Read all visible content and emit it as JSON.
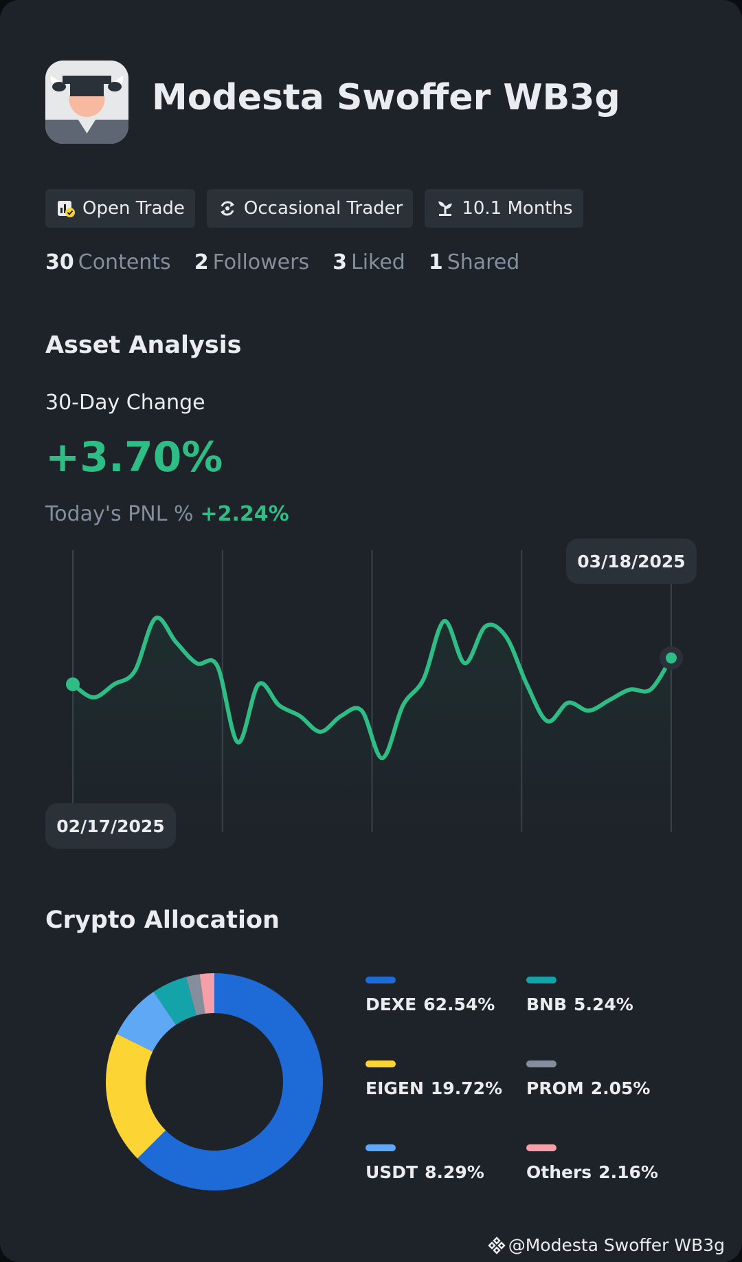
{
  "profile": {
    "name": "Modesta Swoffer WB3g",
    "tags": [
      {
        "label": "Open Trade",
        "icon": "open-trade-icon"
      },
      {
        "label": "Occasional Trader",
        "icon": "trader-cycle-icon"
      },
      {
        "label": "10.1 Months",
        "icon": "sprout-icon"
      }
    ],
    "stats": [
      {
        "value": "30",
        "label": "Contents"
      },
      {
        "value": "2",
        "label": "Followers"
      },
      {
        "value": "3",
        "label": "Liked"
      },
      {
        "value": "1",
        "label": "Shared"
      }
    ]
  },
  "asset_analysis": {
    "title": "Asset Analysis",
    "change_label": "30-Day Change",
    "change_value": "+3.70%",
    "pnl_label": "Today's PNL %",
    "pnl_value": "+2.24%",
    "start_date": "02/17/2025",
    "end_date": "03/18/2025"
  },
  "allocation": {
    "title": "Crypto Allocation",
    "items": [
      {
        "name": "DEXE",
        "percent": "62.54%",
        "color": "#1e6ad6"
      },
      {
        "name": "BNB",
        "percent": "5.24%",
        "color": "#14a3a8"
      },
      {
        "name": "EIGEN",
        "percent": "19.72%",
        "color": "#fcd535"
      },
      {
        "name": "PROM",
        "percent": "2.05%",
        "color": "#848e9c"
      },
      {
        "name": "USDT",
        "percent": "8.29%",
        "color": "#5ea8f5"
      },
      {
        "name": "Others",
        "percent": "2.16%",
        "color": "#f5a0a8"
      }
    ]
  },
  "watermark": "@Modesta Swoffer WB3g",
  "colors": {
    "positive": "#2ebd85",
    "background": "#1e2329",
    "muted": "#848e9c"
  },
  "chart_data": [
    {
      "type": "line",
      "x": [
        "02/17/2025",
        "02/18/2025",
        "02/19/2025",
        "02/20/2025",
        "02/21/2025",
        "02/22/2025",
        "02/23/2025",
        "02/24/2025",
        "02/25/2025",
        "02/26/2025",
        "02/27/2025",
        "02/28/2025",
        "03/01/2025",
        "03/02/2025",
        "03/03/2025",
        "03/04/2025",
        "03/05/2025",
        "03/06/2025",
        "03/07/2025",
        "03/08/2025",
        "03/09/2025",
        "03/10/2025",
        "03/11/2025",
        "03/12/2025",
        "03/13/2025",
        "03/14/2025",
        "03/15/2025",
        "03/16/2025",
        "03/17/2025",
        "03/18/2025"
      ],
      "y": [
        70,
        65,
        70,
        75,
        95,
        86,
        78,
        77,
        48,
        70,
        62,
        58,
        52,
        58,
        60,
        42,
        62,
        72,
        94,
        78,
        92,
        88,
        70,
        56,
        63,
        60,
        64,
        68,
        68,
        80
      ],
      "grid": true,
      "legend": "none"
    },
    {
      "type": "pie",
      "categories": [
        "DEXE",
        "EIGEN",
        "USDT",
        "BNB",
        "PROM",
        "Others"
      ],
      "values": [
        62.54,
        19.72,
        8.29,
        5.24,
        2.05,
        2.16
      ],
      "colors": [
        "#1e6ad6",
        "#fcd535",
        "#5ea8f5",
        "#14a3a8",
        "#848e9c",
        "#f5a0a8"
      ],
      "legend": "right"
    }
  ]
}
